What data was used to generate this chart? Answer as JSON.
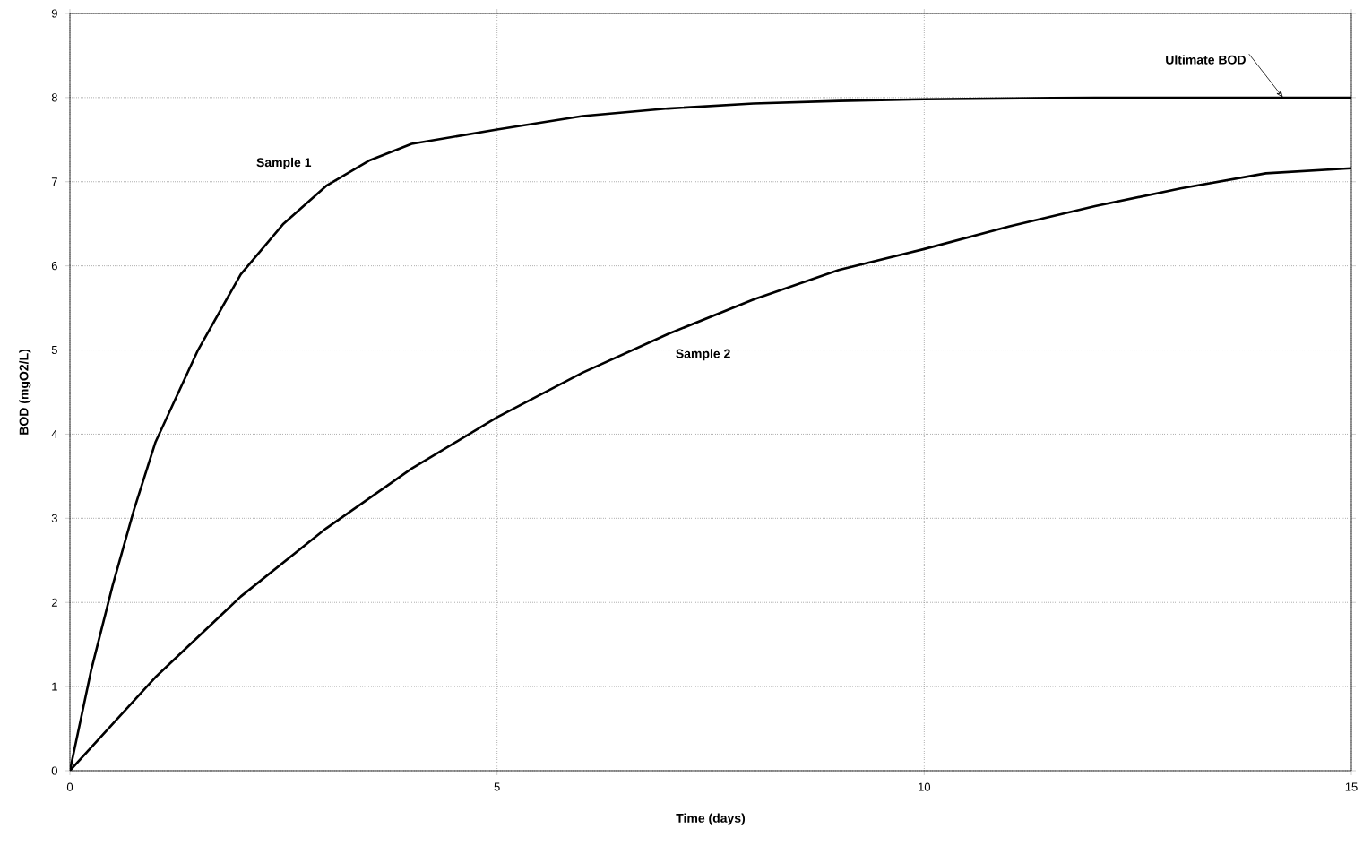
{
  "chart_data": {
    "type": "line",
    "xlabel": "Time (days)",
    "ylabel": "BOD (mgO2/L)",
    "xlim": [
      0,
      15
    ],
    "ylim": [
      0,
      9
    ],
    "xticks": [
      0,
      5,
      10,
      15
    ],
    "yticks": [
      0,
      1,
      2,
      3,
      4,
      5,
      6,
      7,
      8,
      9
    ],
    "grid": true,
    "line_style": "solid",
    "marker": "none",
    "series": [
      {
        "name": "Sample 1",
        "color": "#000000",
        "x": [
          0,
          0.25,
          0.5,
          0.75,
          1,
          1.5,
          2,
          2.5,
          3,
          3.5,
          4,
          5,
          6,
          7,
          8,
          9,
          10,
          12,
          15
        ],
        "values": [
          0,
          1.2,
          2.2,
          3.1,
          3.9,
          5.0,
          5.9,
          6.5,
          6.95,
          7.25,
          7.45,
          7.62,
          7.78,
          7.87,
          7.93,
          7.96,
          7.98,
          8.0,
          8.0
        ]
      },
      {
        "name": "Sample 2",
        "color": "#000000",
        "x": [
          0,
          1,
          2,
          3,
          4,
          5,
          6,
          7,
          8,
          9,
          10,
          11,
          12,
          13,
          14,
          15
        ],
        "values": [
          0,
          1.11,
          2.07,
          2.88,
          3.59,
          4.2,
          4.73,
          5.19,
          5.6,
          5.95,
          6.2,
          6.47,
          6.71,
          6.92,
          7.1,
          7.16
        ]
      }
    ],
    "annotations": [
      {
        "text": "Ultimate BOD",
        "x": 14.2,
        "y": 8
      }
    ]
  }
}
